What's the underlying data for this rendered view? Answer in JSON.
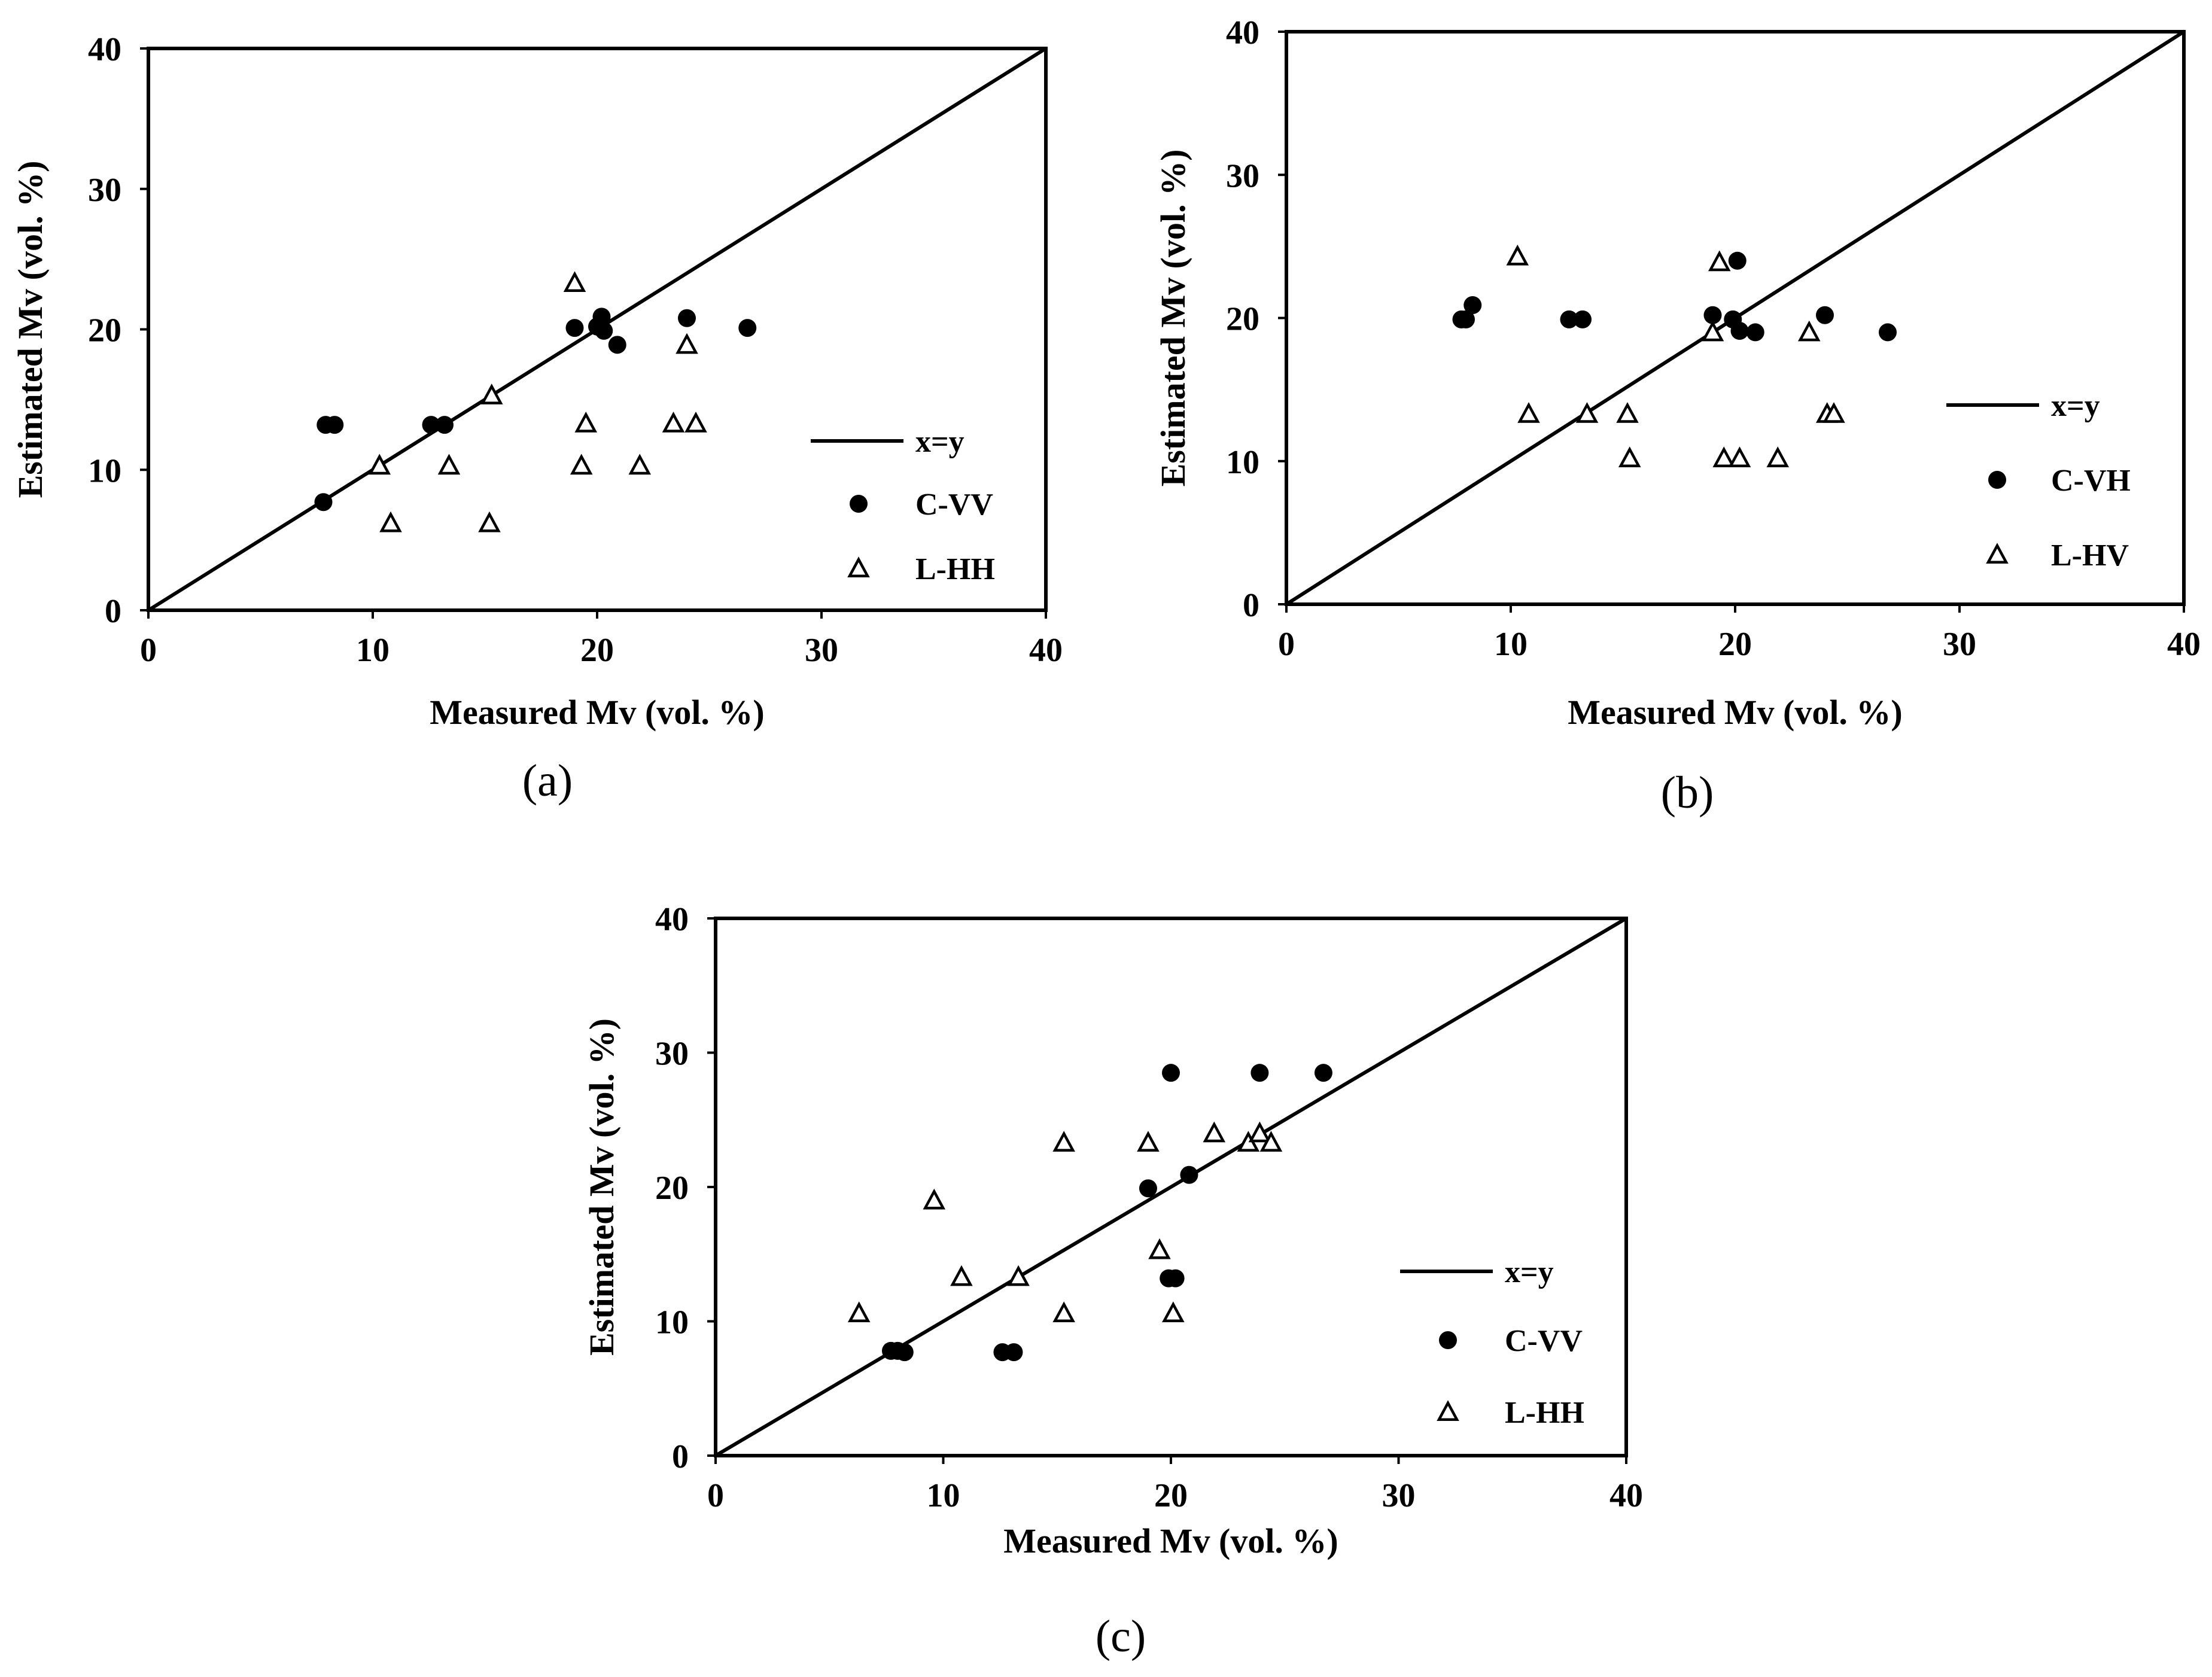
{
  "chart_data": [
    {
      "type": "scatter",
      "caption": "(a)",
      "xlabel": "Measured Mv (vol. %)",
      "ylabel": "Estimated Mv (vol. %)",
      "xlim": [
        0,
        40
      ],
      "ylim": [
        0,
        40
      ],
      "xticks": [
        "0",
        "10",
        "20",
        "30",
        "40"
      ],
      "yticks": [
        "0",
        "10",
        "20",
        "30",
        "40"
      ],
      "legend_position": "right",
      "reference_line": {
        "name": "x=y",
        "x": [
          0,
          40
        ],
        "y": [
          0,
          40
        ]
      },
      "series": [
        {
          "name": "C-VV",
          "marker": "filled-circle",
          "x": [
            7.8,
            7.9,
            8.3,
            12.6,
            13.2,
            19.0,
            20.0,
            20.2,
            20.3,
            20.9,
            24.0,
            26.7
          ],
          "y": [
            7.7,
            13.2,
            13.2,
            13.2,
            13.2,
            20.1,
            20.2,
            20.9,
            19.9,
            18.9,
            20.8,
            20.1
          ]
        },
        {
          "name": "L-HH",
          "marker": "open-triangle",
          "x": [
            10.3,
            10.8,
            13.4,
            15.2,
            15.3,
            19.0,
            19.3,
            19.5,
            21.9,
            23.4,
            24.0,
            24.4
          ],
          "y": [
            10.3,
            6.2,
            10.3,
            6.2,
            15.3,
            23.3,
            10.3,
            13.3,
            10.3,
            13.3,
            18.9,
            13.3
          ]
        }
      ]
    },
    {
      "type": "scatter",
      "caption": "(b)",
      "xlabel": "Measured Mv (vol. %)",
      "ylabel": "Estimated Mv (vol. %)",
      "xlim": [
        0,
        40
      ],
      "ylim": [
        0,
        40
      ],
      "xticks": [
        "0",
        "10",
        "20",
        "30",
        "40"
      ],
      "yticks": [
        "0",
        "10",
        "20",
        "30",
        "40"
      ],
      "legend_position": "right",
      "reference_line": {
        "name": "x=y",
        "x": [
          0,
          40
        ],
        "y": [
          0,
          40
        ]
      },
      "series": [
        {
          "name": "C-VH",
          "marker": "filled-circle",
          "x": [
            7.8,
            8.0,
            8.3,
            12.6,
            13.2,
            19.0,
            19.9,
            20.1,
            20.2,
            20.9,
            24.0,
            26.8
          ],
          "y": [
            19.9,
            19.9,
            20.9,
            19.9,
            19.9,
            20.2,
            19.9,
            24.0,
            19.1,
            19.0,
            20.2,
            19.0
          ]
        },
        {
          "name": "L-HV",
          "marker": "open-triangle",
          "x": [
            10.3,
            10.8,
            13.4,
            15.2,
            15.3,
            19.0,
            19.3,
            19.5,
            20.2,
            21.9,
            23.3,
            24.1,
            24.4
          ],
          "y": [
            24.3,
            13.3,
            13.3,
            13.3,
            10.2,
            19.0,
            23.9,
            10.2,
            10.2,
            10.2,
            19.0,
            13.3,
            13.3
          ]
        }
      ]
    },
    {
      "type": "scatter",
      "caption": "(c)",
      "xlabel": "Measured Mv (vol. %)",
      "ylabel": "Estimated Mv (vol. %)",
      "xlim": [
        0,
        40
      ],
      "ylim": [
        0,
        40
      ],
      "xticks": [
        "0",
        "10",
        "20",
        "30",
        "40"
      ],
      "yticks": [
        "0",
        "10",
        "20",
        "30",
        "40"
      ],
      "legend_position": "right",
      "reference_line": {
        "name": "x=y",
        "x": [
          0,
          40
        ],
        "y": [
          0,
          40
        ]
      },
      "series": [
        {
          "name": "C-VV",
          "marker": "filled-circle",
          "x": [
            7.7,
            8.0,
            8.3,
            12.6,
            13.1,
            19.0,
            19.9,
            20.0,
            20.2,
            20.8,
            23.9,
            26.7
          ],
          "y": [
            7.8,
            7.8,
            7.7,
            7.7,
            7.7,
            19.9,
            13.2,
            28.5,
            13.2,
            20.9,
            28.5,
            28.5
          ]
        },
        {
          "name": "L-HH",
          "marker": "open-triangle",
          "x": [
            6.3,
            9.6,
            10.8,
            13.3,
            15.3,
            15.3,
            19.0,
            19.5,
            20.1,
            21.9,
            23.4,
            23.9,
            24.4
          ],
          "y": [
            10.6,
            19.0,
            13.3,
            13.3,
            10.6,
            23.3,
            23.3,
            15.3,
            10.6,
            24.0,
            23.3,
            24.0,
            23.3
          ]
        }
      ]
    }
  ]
}
